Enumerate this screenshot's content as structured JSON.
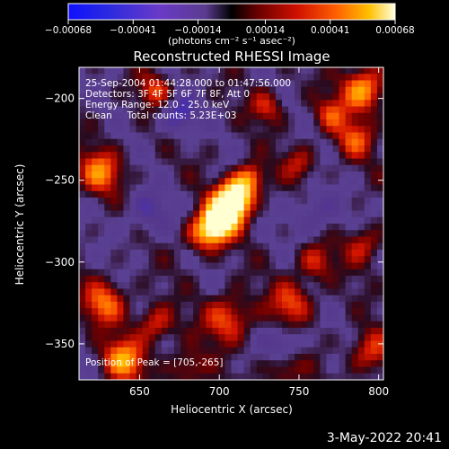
{
  "chart_data": {
    "type": "heatmap",
    "title": "Reconstructed RHESSI Image",
    "xlabel": "Heliocentric X (arcsec)",
    "ylabel": "Heliocentric Y (arcsec)",
    "xlim": [
      612,
      803
    ],
    "ylim": [
      -372,
      -181
    ],
    "x_ticks": [
      650,
      700,
      750,
      800
    ],
    "y_ticks": [
      -200,
      -250,
      -300,
      -350
    ],
    "x_tick_labels": [
      "650",
      "700",
      "750",
      "800"
    ],
    "y_tick_labels": [
      "−200",
      "−250",
      "−300",
      "−350"
    ],
    "colorbar": {
      "range": [
        -0.00068,
        0.00068
      ],
      "ticks": [
        -0.00068,
        -0.00041,
        -0.00014,
        0.00014,
        0.00041,
        0.00068
      ],
      "tick_labels": [
        "−0.00068",
        "−0.00041",
        "−0.00014",
        "0.00014",
        "0.00041",
        "0.00068"
      ],
      "units": "(photons cm⁻² s⁻¹ asec⁻²)"
    },
    "annotations": {
      "time_range": "25-Sep-2004 01:44:28.000 to 01:47:56.000",
      "detectors": "Detectors: 3F 4F 5F 6F 7F 8F, Att 0",
      "energy_range": "Energy Range: 12.0 - 25.0 keV",
      "method_counts": "Clean     Total counts: 5.23E+03",
      "peak_position": "Position of Peak = [705,-265]"
    },
    "peak": [
      705,
      -265
    ],
    "sources": [
      {
        "x": 705,
        "y": -268,
        "amp": 1.3,
        "s": 8
      },
      {
        "x": 712,
        "y": -258,
        "amp": 1.0,
        "s": 7
      },
      {
        "x": 698,
        "y": -278,
        "amp": 0.85,
        "s": 7
      },
      {
        "x": 690,
        "y": -283,
        "amp": 0.55,
        "s": 8
      },
      {
        "x": 720,
        "y": -248,
        "amp": 0.55,
        "s": 6
      },
      {
        "x": 625,
        "y": -245,
        "amp": 0.65,
        "s": 9
      },
      {
        "x": 628,
        "y": -325,
        "amp": 0.6,
        "s": 9
      },
      {
        "x": 640,
        "y": -360,
        "amp": 0.75,
        "s": 9
      },
      {
        "x": 660,
        "y": -338,
        "amp": 0.45,
        "s": 8
      },
      {
        "x": 705,
        "y": -335,
        "amp": 0.55,
        "s": 10
      },
      {
        "x": 745,
        "y": -325,
        "amp": 0.5,
        "s": 9
      },
      {
        "x": 760,
        "y": -300,
        "amp": 0.4,
        "s": 8
      },
      {
        "x": 790,
        "y": -195,
        "amp": 0.8,
        "s": 9
      },
      {
        "x": 785,
        "y": -225,
        "amp": 0.5,
        "s": 8
      },
      {
        "x": 770,
        "y": -210,
        "amp": 0.45,
        "s": 7
      },
      {
        "x": 790,
        "y": -290,
        "amp": 0.4,
        "s": 8
      },
      {
        "x": 795,
        "y": -355,
        "amp": 0.45,
        "s": 9
      },
      {
        "x": 730,
        "y": -205,
        "amp": 0.4,
        "s": 7
      },
      {
        "x": 660,
        "y": -195,
        "amp": 0.45,
        "s": 7
      },
      {
        "x": 750,
        "y": -240,
        "amp": 0.35,
        "s": 7
      },
      {
        "x": 740,
        "y": -365,
        "amp": 0.35,
        "s": 8
      },
      {
        "x": 680,
        "y": -365,
        "amp": 0.35,
        "s": 8
      },
      {
        "x": 675,
        "y": -210,
        "amp": -0.45,
        "s": 8
      },
      {
        "x": 655,
        "y": -270,
        "amp": -0.3,
        "s": 10
      },
      {
        "x": 760,
        "y": -270,
        "amp": -0.3,
        "s": 10
      },
      {
        "x": 740,
        "y": -350,
        "amp": -0.35,
        "s": 8
      }
    ]
  },
  "footer": {
    "date": "3-May-2022 20:41"
  }
}
